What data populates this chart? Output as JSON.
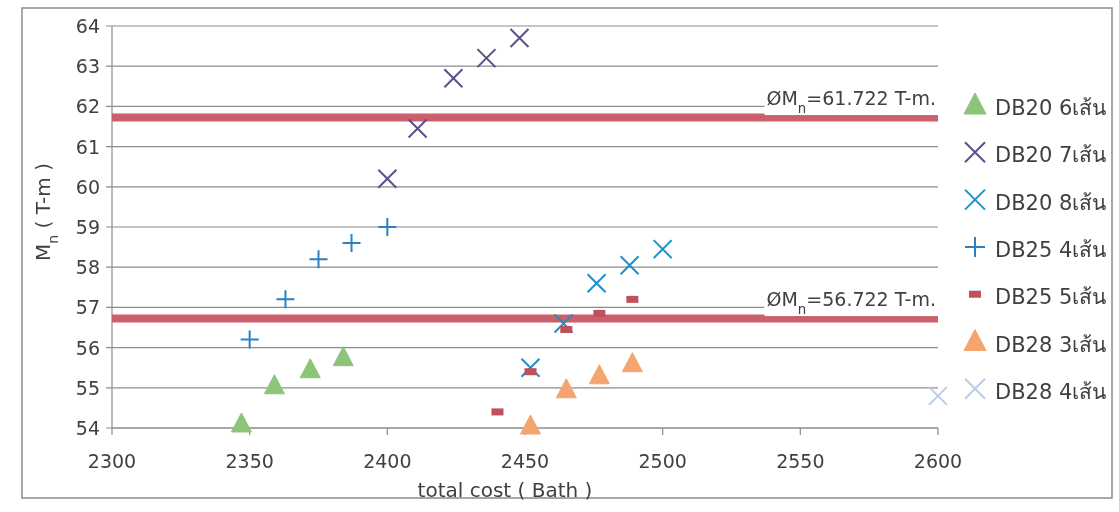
{
  "chart_data": {
    "type": "scatter",
    "xlabel": "total cost ( Bath )",
    "ylabel": "M$_{n}$ ( T-m )",
    "xlim": [
      2300,
      2600
    ],
    "xticks": [
      2300,
      2350,
      2400,
      2450,
      2500,
      2550,
      2600
    ],
    "ylim": [
      54,
      64
    ],
    "yticks": [
      54,
      55,
      56,
      57,
      58,
      59,
      60,
      61,
      62,
      63,
      64
    ],
    "grid": "y",
    "legend": "right",
    "ref_lines": [
      {
        "axis": "y",
        "value": 61.722,
        "label": "ØM$_{n}$=61.722 T-m.",
        "color": "#c9606b"
      },
      {
        "axis": "y",
        "value": 56.722,
        "label": "ØM$_{n}$=56.722 T-m.",
        "color": "#c9606b"
      }
    ],
    "series": [
      {
        "name": "DB20 6เส้น",
        "color": "#8cc47a",
        "marker": "triangle",
        "x": [
          2347,
          2359,
          2372,
          2384
        ],
        "values": [
          54.1,
          55.05,
          55.45,
          55.75
        ]
      },
      {
        "name": "DB20 7เส้น",
        "color": "#5b4f8e",
        "marker": "cross",
        "x": [
          2400,
          2411,
          2424,
          2436,
          2448
        ],
        "values": [
          60.2,
          61.45,
          62.7,
          63.2,
          63.7
        ]
      },
      {
        "name": "DB20 8เส้น",
        "color": "#1f8fc6",
        "marker": "cross",
        "x": [
          2452,
          2464,
          2476,
          2488,
          2500
        ],
        "values": [
          55.5,
          56.6,
          57.6,
          58.05,
          58.45
        ]
      },
      {
        "name": "DB25 4เส้น",
        "color": "#2a80c4",
        "marker": "plus",
        "x": [
          2350,
          2363,
          2375,
          2387,
          2400
        ],
        "values": [
          56.2,
          57.2,
          58.2,
          58.6,
          59.0
        ]
      },
      {
        "name": "DB25 5เส้น",
        "color": "#c0505a",
        "marker": "square",
        "x": [
          2440,
          2452,
          2465,
          2477,
          2489
        ],
        "values": [
          54.4,
          55.4,
          56.45,
          56.85,
          57.2
        ]
      },
      {
        "name": "DB28 3เส้น",
        "color": "#f4a46e",
        "marker": "triangle",
        "x": [
          2452,
          2465,
          2477,
          2489
        ],
        "values": [
          54.05,
          54.95,
          55.3,
          55.6
        ]
      },
      {
        "name": "DB28 4เส้น",
        "color": "#b9cde6",
        "marker": "cross",
        "x": [
          2600
        ],
        "values": [
          54.8
        ]
      }
    ]
  }
}
